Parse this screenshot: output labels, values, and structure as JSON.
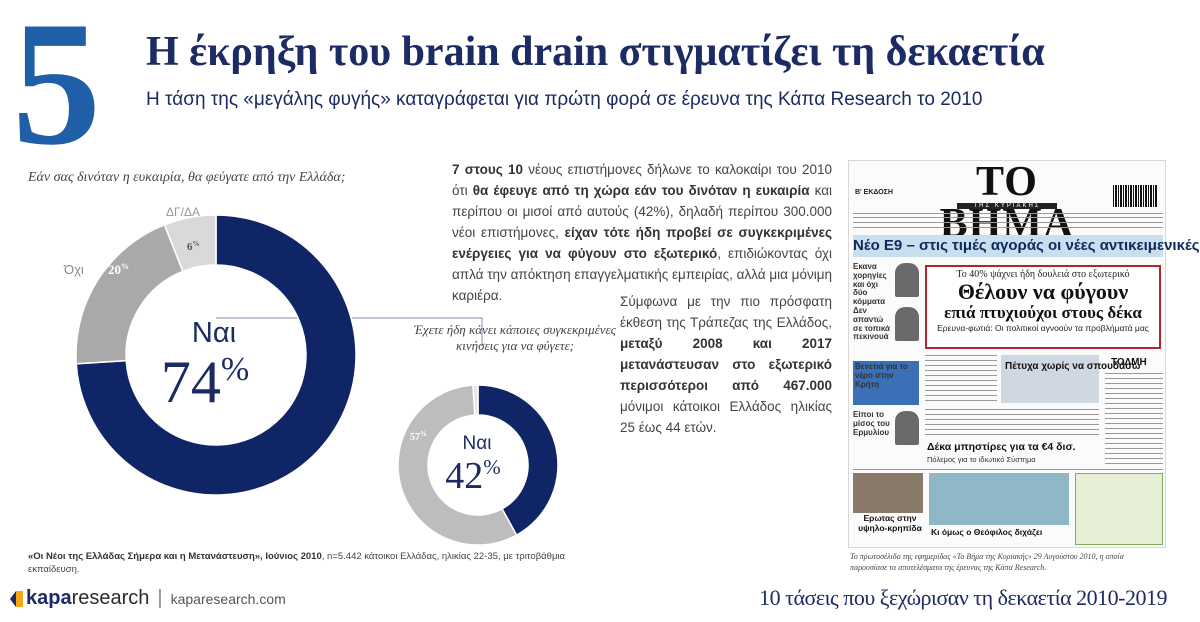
{
  "header": {
    "number": "5",
    "title": "Η έκρηξη του brain drain στιγματίζει τη δεκαετία",
    "subtitle": "Η τάση της «μεγάλης φυγής» καταγράφεται για πρώτη φορά σε έρευνα της Κάπα Research το 2010"
  },
  "chart_data": [
    {
      "type": "pie",
      "title": "Εάν σας δινόταν η ευκαιρία, θα φεύγατε από την Ελλάδα;",
      "slices": [
        {
          "label": "Ναι",
          "value": 74
        },
        {
          "label": "Όχι",
          "value": 20
        },
        {
          "label": "ΔΓ/ΔΑ",
          "value": 6
        }
      ],
      "colors": [
        "#0f2566",
        "#a9a9a9",
        "#d9d9d9"
      ],
      "center_label": "Ναι",
      "center_value": "74",
      "labels_shown": {
        "no_label": "Όχι",
        "no_value": "20",
        "dk_label": "ΔΓ/ΔΑ",
        "dk_value": "6"
      }
    },
    {
      "type": "pie",
      "title": "Έχετε ήδη κάνει κάποιες συγκεκριμένες κινήσεις για να φύγετε;",
      "slices": [
        {
          "label": "Ναι",
          "value": 42
        },
        {
          "label": "",
          "value": 57
        },
        {
          "label": "",
          "value": 1
        }
      ],
      "colors": [
        "#0f2566",
        "#bdbdbd",
        "#e6e6e6"
      ],
      "center_label": "Ναι",
      "center_value": "42",
      "labels_shown": {
        "other_value": "57"
      }
    }
  ],
  "percent_sign": "%",
  "paragraphs": {
    "p1": [
      {
        "t": "7 στους 10",
        "b": true
      },
      {
        "t": " νέους επιστήμονες δήλωνε το καλοκαίρι του 2010 ότι ",
        "b": false
      },
      {
        "t": "θα έφευγε από τη χώρα εάν του δινόταν η ευκαιρία",
        "b": true
      },
      {
        "t": " και περίπου οι μισοί από αυτούς (42%), δηλαδή περίπου 300.000 νέοι επιστήμονες, ",
        "b": false
      },
      {
        "t": "είχαν τότε ήδη προβεί σε συγκεκριμένες ενέργειες για να φύγουν στο εξωτερικό",
        "b": true
      },
      {
        "t": ", επιδιώκοντας όχι απλά την απόκτηση επαγγελματικής εμπειρίας, αλλά μια μόνιμη καριέρα.",
        "b": false
      }
    ],
    "p2": [
      {
        "t": "Σύμφωνα με την πιο πρόσφατη έκθεση της Τράπεζας της Ελλάδος, ",
        "b": false
      },
      {
        "t": "μεταξύ 2008 και 2017 μετανάστευσαν στο εξωτερικό περισσότεροι από 467.000",
        "b": true
      },
      {
        "t": " μόνιμοι κάτοικοι Ελλάδος ηλικίας 25 έως 44 ετών.",
        "b": false
      }
    ]
  },
  "source": {
    "title": "«Οι Νέοι της Ελλάδας Σήμερα και η Μετανάστευση», Ιούνιος 2010",
    "sample": ", n=5.442 κάτοικοι Ελλάδας, ηλικίας 22-35, με τριτοβάθμια εκπαίδευση."
  },
  "newspaper": {
    "edition": "Β' ΕΚΔΟΣΗ",
    "title": "ΤΟ ΒΗΜΑ",
    "subtitle": "ΤΗΣ ΚΥΡΙΑΚΗΣ",
    "banner": "Νέο Ε9 – στις τιμές αγοράς οι νέες αντικειμενικές",
    "kicker": "Το 40% ψάχνει ήδη δουλειά στο εξωτερικό",
    "headline1": "Θέλουν να φύγουν",
    "headline2": "επιά πτυχιούχοι στους δέκα",
    "deck": "Ερευνα-φωτιά: Οι πολιτικοί αγνοούν τα προβλήματά μας",
    "side1": "Εκανα χορηγίες και όχι δύο κόμματα",
    "side2": "Δεν απαντώ σε τοπικά πεκινουά",
    "side3": "Βενετιά για το νέρο στην Κρήτη",
    "side4": "Είποι το μίσος του Ερμυλίου",
    "mid1": "Πέτυχα χωρίς να σπουδάσω",
    "mid2": "Δέκα μπηστίρες για τα €4 δισ.",
    "mid3": "Πόλεμος για το ιδιωτικό Σύστημα",
    "right": "ΤΟΛΜΗ",
    "bottom1": "Ερωτας στην υψηλο-κρηπίδα",
    "bottom2": "Κι όμως ο Θεόφιλος διχάζει"
  },
  "caption": "Το πρωτοσέλιδο της εφημερίδας «Το Βήμα της Κυριακής» 29 Αυγούστου 2010, η οποία παρουσίασε τα αποτελέσματα της έρευνας της Κάπα Research.",
  "footer": {
    "logo_kapa": "kapa",
    "logo_research": "research",
    "url": "kaparesearch.com",
    "decade": "10 τάσεις που ξεχώρισαν τη δεκαετία 2010-2019"
  }
}
